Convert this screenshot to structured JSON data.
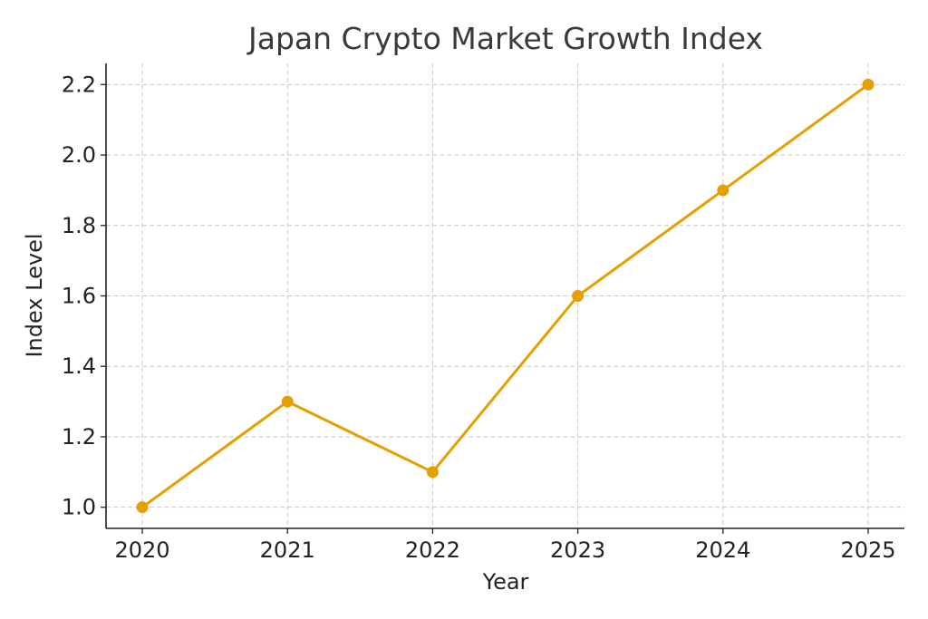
{
  "chart_data": {
    "type": "line",
    "title": "Japan Crypto Market Growth Index",
    "xlabel": "Year",
    "ylabel": "Index Level",
    "categories": [
      "2020",
      "2021",
      "2022",
      "2023",
      "2024",
      "2025"
    ],
    "x_tick_labels": [
      "2020",
      "2021",
      "2022",
      "2023",
      "2024",
      "2025"
    ],
    "y_ticks": [
      1.0,
      1.2,
      1.4,
      1.6,
      1.8,
      2.0,
      2.2
    ],
    "y_tick_labels": [
      "1.0",
      "1.2",
      "1.4",
      "1.6",
      "1.8",
      "2.0",
      "2.2"
    ],
    "ylim": [
      0.94,
      2.26
    ],
    "grid": true,
    "legend": "none",
    "marker": "circle",
    "series": [
      {
        "values": [
          1.0,
          1.3,
          1.1,
          1.6,
          1.9,
          2.2
        ],
        "color": "#E69F00"
      }
    ]
  }
}
